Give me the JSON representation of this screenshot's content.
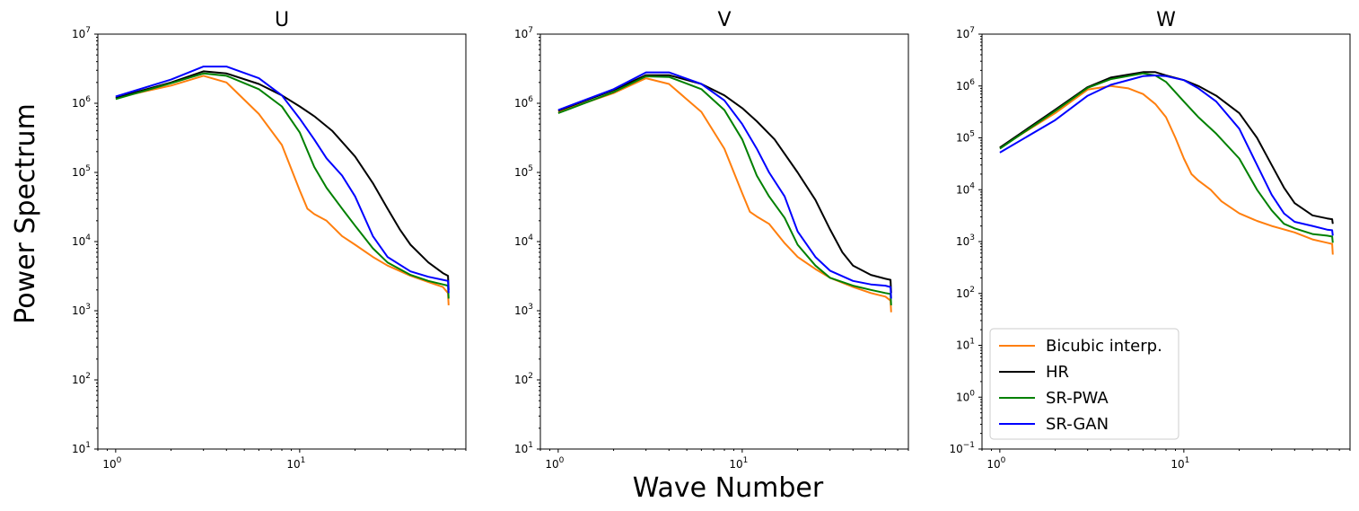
{
  "figure": {
    "xlabel": "Wave Number",
    "ylabel": "Power Spectrum"
  },
  "colors": {
    "Bicubic interp.": "#ff7f0e",
    "HR": "#000000",
    "SR-PWA": "#008000",
    "SR-GAN": "#0000ff"
  },
  "legend": {
    "location": "lower-left of third panel",
    "entries": [
      "Bicubic interp.",
      "HR",
      "SR-PWA",
      "SR-GAN"
    ]
  },
  "chart_data": [
    {
      "type": "line",
      "title": "U",
      "xscale": "log",
      "yscale": "log",
      "xlim": [
        0.8,
        80
      ],
      "ylim": [
        10,
        10000000
      ],
      "xticks": [
        {
          "base": "10",
          "exp": "0"
        },
        {
          "base": "10",
          "exp": "1"
        }
      ],
      "yticks": [
        {
          "base": "10",
          "exp": "1"
        },
        {
          "base": "10",
          "exp": "2"
        },
        {
          "base": "10",
          "exp": "3"
        },
        {
          "base": "10",
          "exp": "4"
        },
        {
          "base": "10",
          "exp": "5"
        },
        {
          "base": "10",
          "exp": "6"
        },
        {
          "base": "10",
          "exp": "7"
        }
      ],
      "series": [
        {
          "name": "Bicubic interp.",
          "x": [
            1,
            2,
            3,
            4,
            6,
            8,
            10,
            11,
            12,
            14,
            17,
            20,
            25,
            30,
            40,
            50,
            60,
            64,
            64.5
          ],
          "y": [
            1200000,
            1800000,
            2500000,
            2000000,
            700000,
            250000,
            55000,
            30000,
            25000,
            20000,
            12000,
            9000,
            6000,
            4500,
            3200,
            2600,
            2200,
            1800,
            1200
          ]
        },
        {
          "name": "HR",
          "x": [
            1,
            2,
            3,
            4,
            6,
            8,
            10,
            12,
            15,
            20,
            25,
            30,
            35,
            40,
            50,
            60,
            64,
            64.5
          ],
          "y": [
            1200000,
            2000000,
            2900000,
            2700000,
            1900000,
            1300000,
            900000,
            650000,
            400000,
            170000,
            70000,
            30000,
            15000,
            9000,
            5000,
            3500,
            3200,
            2000
          ]
        },
        {
          "name": "SR-PWA",
          "x": [
            1,
            2,
            3,
            4,
            6,
            8,
            10,
            12,
            14,
            17,
            20,
            25,
            30,
            40,
            50,
            60,
            64,
            64.5
          ],
          "y": [
            1150000,
            1950000,
            2700000,
            2500000,
            1600000,
            900000,
            380000,
            120000,
            60000,
            30000,
            17000,
            8000,
            5000,
            3300,
            2700,
            2400,
            2300,
            1500
          ]
        },
        {
          "name": "SR-GAN",
          "x": [
            1,
            2,
            3,
            4,
            6,
            8,
            10,
            12,
            14,
            17,
            20,
            25,
            30,
            40,
            50,
            60,
            64,
            64.5
          ],
          "y": [
            1250000,
            2200000,
            3400000,
            3400000,
            2300000,
            1300000,
            600000,
            300000,
            160000,
            90000,
            45000,
            12000,
            6000,
            3700,
            3100,
            2800,
            2700,
            1800
          ]
        }
      ]
    },
    {
      "type": "line",
      "title": "V",
      "xscale": "log",
      "yscale": "log",
      "xlim": [
        0.8,
        80
      ],
      "ylim": [
        10,
        10000000
      ],
      "xticks": [
        {
          "base": "10",
          "exp": "0"
        },
        {
          "base": "10",
          "exp": "1"
        }
      ],
      "yticks": [
        {
          "base": "10",
          "exp": "1"
        },
        {
          "base": "10",
          "exp": "2"
        },
        {
          "base": "10",
          "exp": "3"
        },
        {
          "base": "10",
          "exp": "4"
        },
        {
          "base": "10",
          "exp": "5"
        },
        {
          "base": "10",
          "exp": "6"
        },
        {
          "base": "10",
          "exp": "7"
        }
      ],
      "series": [
        {
          "name": "Bicubic interp.",
          "x": [
            1,
            2,
            3,
            4,
            6,
            8,
            10,
            11,
            12,
            14,
            17,
            20,
            25,
            30,
            40,
            50,
            60,
            64,
            64.5
          ],
          "y": [
            750000,
            1400000,
            2300000,
            1900000,
            750000,
            220000,
            50000,
            27000,
            23000,
            18000,
            9500,
            6000,
            4000,
            3000,
            2200,
            1800,
            1600,
            1400,
            950
          ]
        },
        {
          "name": "HR",
          "x": [
            1,
            2,
            3,
            4,
            6,
            8,
            10,
            12,
            15,
            20,
            25,
            30,
            35,
            40,
            50,
            60,
            64,
            64.5
          ],
          "y": [
            780000,
            1550000,
            2550000,
            2550000,
            1900000,
            1300000,
            850000,
            550000,
            300000,
            100000,
            40000,
            15000,
            7000,
            4500,
            3300,
            2900,
            2800,
            1800
          ]
        },
        {
          "name": "SR-PWA",
          "x": [
            1,
            2,
            3,
            4,
            6,
            8,
            10,
            12,
            14,
            17,
            20,
            25,
            30,
            40,
            50,
            60,
            64,
            64.5
          ],
          "y": [
            720000,
            1450000,
            2450000,
            2400000,
            1600000,
            800000,
            300000,
            90000,
            45000,
            22000,
            9000,
            4500,
            3000,
            2300,
            2000,
            1800,
            1750,
            1200
          ]
        },
        {
          "name": "SR-GAN",
          "x": [
            1,
            2,
            3,
            4,
            6,
            8,
            10,
            12,
            14,
            17,
            20,
            25,
            30,
            40,
            50,
            60,
            64,
            64.5
          ],
          "y": [
            800000,
            1600000,
            2800000,
            2800000,
            1900000,
            1100000,
            500000,
            220000,
            100000,
            45000,
            14000,
            6000,
            3800,
            2700,
            2400,
            2300,
            2200,
            1500
          ]
        }
      ]
    },
    {
      "type": "line",
      "title": "W",
      "xscale": "log",
      "yscale": "log",
      "xlim": [
        0.8,
        80
      ],
      "ylim": [
        0.1,
        10000000
      ],
      "xticks": [
        {
          "base": "10",
          "exp": "0"
        },
        {
          "base": "10",
          "exp": "1"
        }
      ],
      "yticks": [
        {
          "base": "10",
          "exp": "−1"
        },
        {
          "base": "10",
          "exp": "0"
        },
        {
          "base": "10",
          "exp": "1"
        },
        {
          "base": "10",
          "exp": "2"
        },
        {
          "base": "10",
          "exp": "3"
        },
        {
          "base": "10",
          "exp": "4"
        },
        {
          "base": "10",
          "exp": "5"
        },
        {
          "base": "10",
          "exp": "6"
        },
        {
          "base": "10",
          "exp": "7"
        }
      ],
      "series": [
        {
          "name": "Bicubic interp.",
          "x": [
            1,
            2,
            3,
            4,
            5,
            6,
            7,
            8,
            9,
            10,
            11,
            12,
            14,
            16,
            20,
            25,
            30,
            40,
            50,
            60,
            64,
            64.5
          ],
          "y": [
            65000,
            300000,
            850000,
            1000000,
            900000,
            700000,
            450000,
            250000,
            100000,
            40000,
            20000,
            15000,
            10000,
            6000,
            3500,
            2500,
            2000,
            1500,
            1100,
            950,
            900,
            560
          ]
        },
        {
          "name": "HR",
          "x": [
            1,
            2,
            3,
            4,
            6,
            7,
            8,
            10,
            12,
            15,
            20,
            25,
            30,
            35,
            40,
            50,
            60,
            64,
            64.5
          ],
          "y": [
            65000,
            350000,
            950000,
            1450000,
            1850000,
            1850000,
            1600000,
            1300000,
            1000000,
            650000,
            300000,
            100000,
            30000,
            11000,
            5500,
            3200,
            2800,
            2700,
            2200
          ]
        },
        {
          "name": "SR-PWA",
          "x": [
            1,
            2,
            3,
            4,
            6,
            7,
            8,
            10,
            12,
            15,
            20,
            25,
            30,
            35,
            40,
            50,
            60,
            64,
            64.5
          ],
          "y": [
            62000,
            330000,
            920000,
            1350000,
            1750000,
            1600000,
            1200000,
            500000,
            250000,
            120000,
            40000,
            10000,
            4000,
            2200,
            1800,
            1400,
            1300,
            1250,
            950
          ]
        },
        {
          "name": "SR-GAN",
          "x": [
            1,
            2,
            3,
            4,
            6,
            7,
            8,
            10,
            12,
            15,
            20,
            25,
            30,
            35,
            40,
            50,
            60,
            64,
            64.5
          ],
          "y": [
            52000,
            220000,
            650000,
            1050000,
            1550000,
            1600000,
            1550000,
            1300000,
            900000,
            500000,
            150000,
            30000,
            8000,
            3500,
            2400,
            2000,
            1700,
            1650,
            1300
          ]
        }
      ]
    }
  ]
}
